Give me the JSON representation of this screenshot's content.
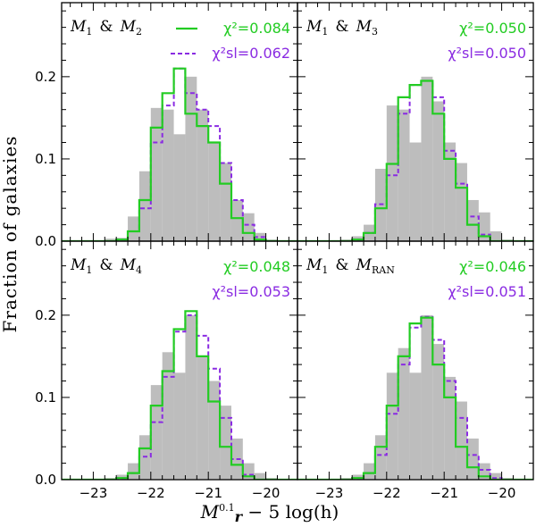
{
  "chart_data": {
    "type": "histogram-grid",
    "ylabel": "Fraction of galaxies",
    "xlabel_parts": {
      "prefix": "M",
      "sup": "0.1",
      "sub": "r",
      "suffix": " − 5 log(h)"
    },
    "xlim": [
      -23.55,
      -19.45
    ],
    "ylim": [
      0,
      0.29
    ],
    "xticks": [
      -23,
      -22,
      -21,
      -20
    ],
    "xtick_labels": [
      "−23",
      "−22",
      "−21",
      "−20"
    ],
    "yticks": [
      0.0,
      0.1,
      0.2
    ],
    "ytick_labels": [
      "0.0",
      "0.1",
      "0.2"
    ],
    "bin_edges": [
      -23.6,
      -23.4,
      -23.2,
      -23.0,
      -22.8,
      -22.6,
      -22.4,
      -22.2,
      -22.0,
      -21.8,
      -21.6,
      -21.4,
      -21.2,
      -21.0,
      -20.8,
      -20.6,
      -20.4,
      -20.2,
      -20.0,
      -19.8,
      -19.6,
      -19.4
    ],
    "legend": [
      {
        "name": "χ²",
        "color": "#22cc22",
        "style": "solid"
      },
      {
        "name": "χ²_sl",
        "color": "#8a2be2",
        "style": "dashed"
      }
    ],
    "panels": [
      {
        "label_main": "M",
        "label_sub1": "1",
        "label_amp": "&",
        "label_main2": "M",
        "label_sub2": "2",
        "chi2_text": "χ²=0.084",
        "chisl_text": "χ²sl=0.062",
        "chi2": 0.084,
        "chisl": 0.062,
        "gray": [
          0.0,
          0.0,
          0.0,
          0.0,
          0.003,
          0.004,
          0.03,
          0.085,
          0.162,
          0.16,
          0.13,
          0.2,
          0.16,
          0.12,
          0.095,
          0.05,
          0.034,
          0.01,
          0.002,
          0.0,
          0.0
        ],
        "green": [
          0.0,
          0.0,
          0.0,
          0.0,
          0.0,
          0.002,
          0.012,
          0.05,
          0.138,
          0.18,
          0.21,
          0.155,
          0.14,
          0.12,
          0.07,
          0.028,
          0.01,
          0.002,
          0.0,
          0.0,
          0.0
        ],
        "purple": [
          0.0,
          0.0,
          0.0,
          0.0,
          0.0,
          0.002,
          0.012,
          0.04,
          0.12,
          0.165,
          0.21,
          0.18,
          0.16,
          0.14,
          0.095,
          0.05,
          0.02,
          0.005,
          0.0,
          0.0,
          0.0
        ]
      },
      {
        "label_main": "M",
        "label_sub1": "1",
        "label_amp": "&",
        "label_main2": "M",
        "label_sub2": "3",
        "chi2_text": "χ²=0.050",
        "chisl_text": "χ²sl=0.050",
        "chi2": 0.05,
        "chisl": 0.05,
        "gray": [
          0.0,
          0.0,
          0.0,
          0.0,
          0.002,
          0.006,
          0.02,
          0.088,
          0.165,
          0.16,
          0.12,
          0.2,
          0.17,
          0.12,
          0.095,
          0.05,
          0.035,
          0.012,
          0.002,
          0.0,
          0.0
        ],
        "green": [
          0.0,
          0.0,
          0.0,
          0.0,
          0.0,
          0.002,
          0.01,
          0.04,
          0.094,
          0.175,
          0.19,
          0.195,
          0.155,
          0.1,
          0.065,
          0.02,
          0.006,
          0.0,
          0.0,
          0.0,
          0.0
        ],
        "purple": [
          0.0,
          0.0,
          0.0,
          0.0,
          0.0,
          0.002,
          0.01,
          0.045,
          0.08,
          0.155,
          0.19,
          0.195,
          0.175,
          0.11,
          0.07,
          0.03,
          0.008,
          0.0,
          0.0,
          0.0,
          0.0
        ]
      },
      {
        "label_main": "M",
        "label_sub1": "1",
        "label_amp": "&",
        "label_main2": "M",
        "label_sub2": "4",
        "chi2_text": "χ²=0.048",
        "chisl_text": "χ²sl=0.053",
        "chi2": 0.048,
        "chisl": 0.053,
        "gray": [
          0.0,
          0.0,
          0.0,
          0.0,
          0.002,
          0.006,
          0.02,
          0.054,
          0.115,
          0.155,
          0.13,
          0.2,
          0.15,
          0.12,
          0.09,
          0.05,
          0.02,
          0.008,
          0.002,
          0.0,
          0.0
        ],
        "green": [
          0.0,
          0.0,
          0.0,
          0.0,
          0.0,
          0.002,
          0.008,
          0.038,
          0.09,
          0.132,
          0.183,
          0.205,
          0.15,
          0.095,
          0.04,
          0.018,
          0.004,
          0.0,
          0.0,
          0.0,
          0.0
        ],
        "purple": [
          0.0,
          0.0,
          0.0,
          0.0,
          0.0,
          0.002,
          0.008,
          0.028,
          0.07,
          0.125,
          0.18,
          0.2,
          0.175,
          0.135,
          0.075,
          0.025,
          0.006,
          0.0,
          0.0,
          0.0,
          0.0
        ]
      },
      {
        "label_main": "M",
        "label_sub1": "1",
        "label_amp": "&",
        "label_main2": "M",
        "label_sub2": "RAN",
        "chi2_text": "χ²=0.046",
        "chisl_text": "χ²sl=0.051",
        "chi2": 0.046,
        "chisl": 0.051,
        "gray": [
          0.0,
          0.0,
          0.0,
          0.0,
          0.002,
          0.006,
          0.02,
          0.054,
          0.13,
          0.16,
          0.13,
          0.2,
          0.165,
          0.125,
          0.095,
          0.05,
          0.02,
          0.008,
          0.002,
          0.0,
          0.0
        ],
        "green": [
          0.0,
          0.0,
          0.0,
          0.0,
          0.0,
          0.002,
          0.008,
          0.04,
          0.09,
          0.15,
          0.19,
          0.197,
          0.14,
          0.1,
          0.04,
          0.015,
          0.004,
          0.0,
          0.0,
          0.0,
          0.0
        ],
        "purple": [
          0.0,
          0.0,
          0.0,
          0.0,
          0.0,
          0.002,
          0.008,
          0.03,
          0.08,
          0.14,
          0.185,
          0.198,
          0.17,
          0.12,
          0.075,
          0.03,
          0.012,
          0.002,
          0.0,
          0.0,
          0.0
        ]
      }
    ]
  }
}
